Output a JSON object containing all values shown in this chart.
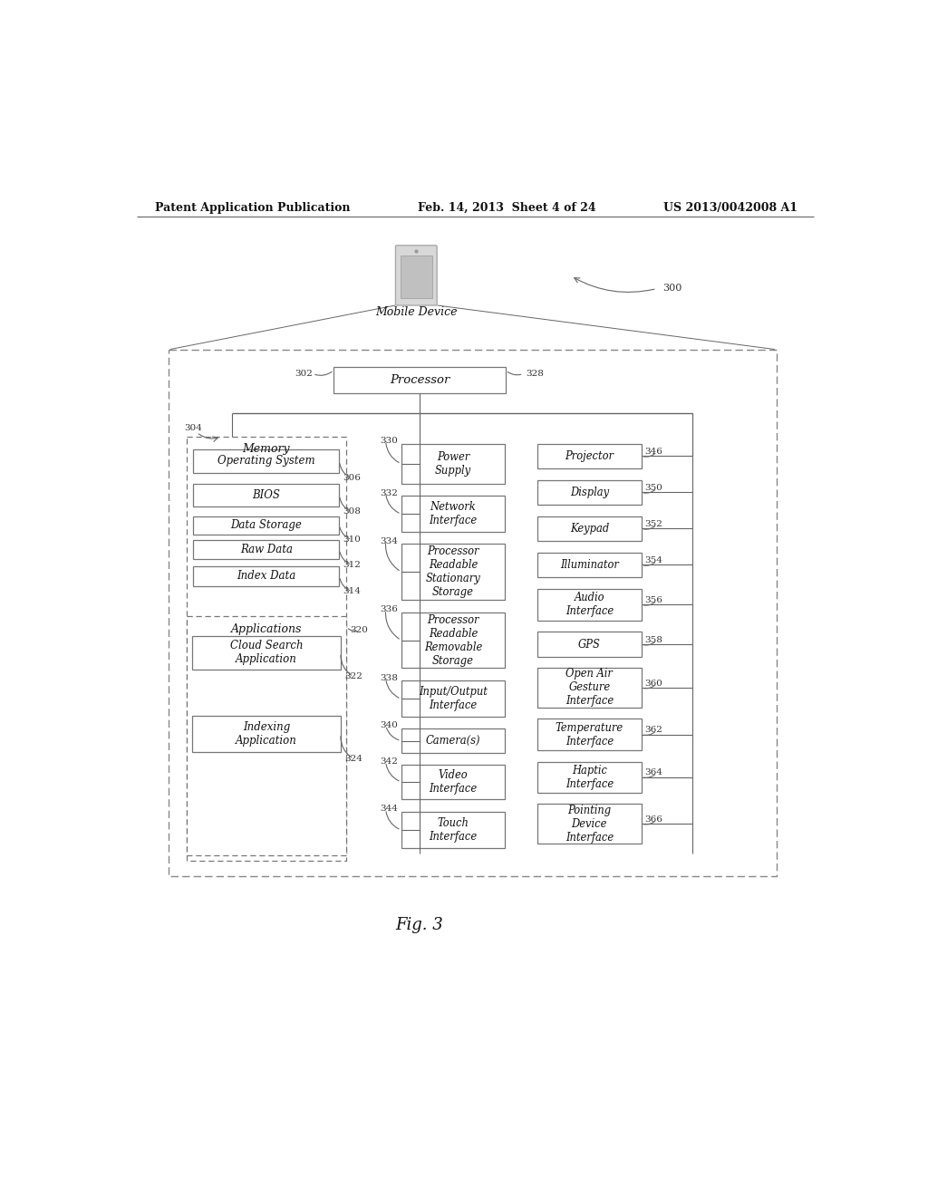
{
  "header_left": "Patent Application Publication",
  "header_mid": "Feb. 14, 2013  Sheet 4 of 24",
  "header_right": "US 2013/0042008 A1",
  "fig_label": "Fig. 3",
  "bg_color": "#ffffff",
  "line_color": "#666666",
  "box_edge": "#777777",
  "text_color": "#111111",
  "ref_color": "#333333"
}
